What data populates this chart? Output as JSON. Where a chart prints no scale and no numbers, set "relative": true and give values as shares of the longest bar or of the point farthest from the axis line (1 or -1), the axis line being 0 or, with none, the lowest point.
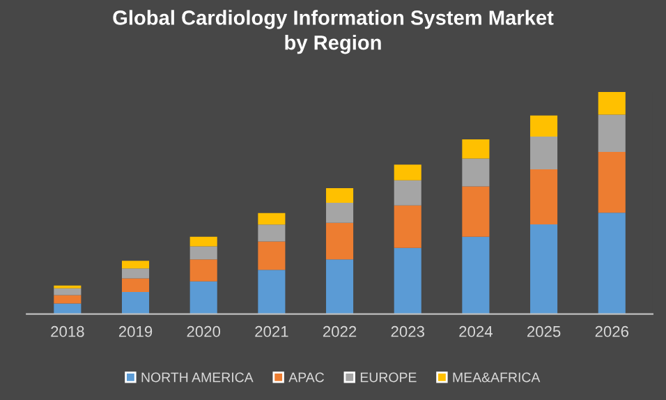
{
  "chart_data": {
    "type": "bar",
    "title": "Global Cardiology Information System Market\nby Region",
    "categories": [
      "2018",
      "2019",
      "2020",
      "2021",
      "2022",
      "2023",
      "2024",
      "2025",
      "2026"
    ],
    "stacked": true,
    "relative": true,
    "legend": "bottom",
    "grid": false,
    "series": [
      {
        "name": "NORTH AMERICA",
        "color": "#5b9bd5",
        "values": [
          0.047,
          0.099,
          0.147,
          0.199,
          0.246,
          0.298,
          0.348,
          0.404,
          0.456
        ]
      },
      {
        "name": "APAC",
        "color": "#ed7d31",
        "values": [
          0.038,
          0.061,
          0.099,
          0.128,
          0.165,
          0.191,
          0.227,
          0.248,
          0.274
        ]
      },
      {
        "name": "EUROPE",
        "color": "#a5a5a5",
        "values": [
          0.031,
          0.045,
          0.059,
          0.076,
          0.09,
          0.113,
          0.125,
          0.147,
          0.168
        ]
      },
      {
        "name": "MEA&AFRICA",
        "color": "#ffc000",
        "values": [
          0.012,
          0.035,
          0.043,
          0.052,
          0.066,
          0.071,
          0.087,
          0.095,
          0.102
        ]
      }
    ]
  }
}
